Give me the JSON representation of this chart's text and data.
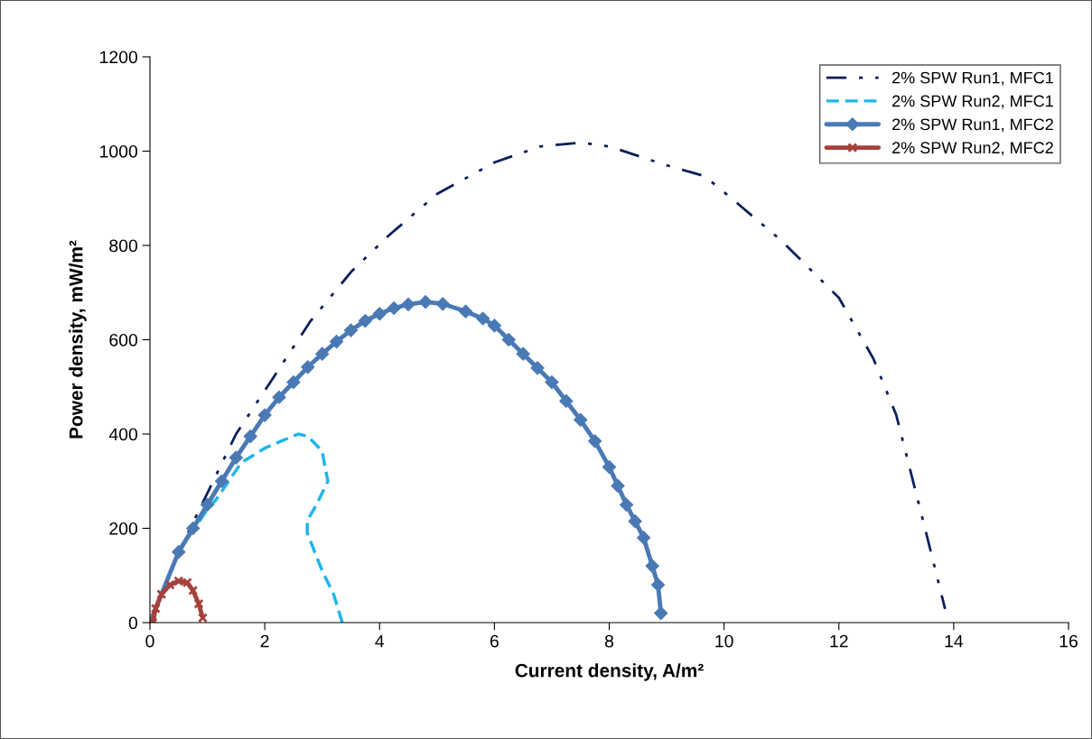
{
  "chart_data": {
    "type": "line",
    "xlabel": "Current density, A/m²",
    "ylabel": "Power density, mW/m²",
    "xlim": [
      0,
      16
    ],
    "xticks": [
      0,
      2,
      4,
      6,
      8,
      10,
      12,
      14,
      16
    ],
    "ylim": [
      0,
      1200
    ],
    "yticks": [
      0,
      200,
      400,
      600,
      800,
      1000,
      1200
    ],
    "grid": false,
    "legend": "top right",
    "series": [
      {
        "name": "2% SPW Run1, MFC1",
        "color": "#0b1f5c",
        "line_style": "dashdotdot",
        "marker": "none",
        "x": [
          0,
          0.5,
          1.05,
          1.5,
          2.0,
          2.8,
          3.52,
          4.15,
          5.0,
          6.0,
          6.8,
          7.5,
          8.0,
          9.0,
          9.66,
          10.13,
          11.0,
          12.0,
          12.6,
          13.0,
          13.5,
          13.85
        ],
        "values": [
          0,
          150,
          287,
          400,
          492,
          640,
          746,
          820,
          909,
          976,
          1010,
          1018,
          1010,
          970,
          947,
          900,
          810,
          689,
          560,
          440,
          200,
          29
        ]
      },
      {
        "name": "2% SPW Run2, MFC1",
        "color": "#1fb5ea",
        "line_style": "dashed",
        "marker": "none",
        "x": [
          0,
          0.5,
          1.0,
          1.16,
          1.59,
          2.0,
          2.58,
          2.75,
          3.0,
          3.05,
          3.1,
          2.9,
          2.74,
          2.74,
          3.0,
          3.2,
          3.35
        ],
        "values": [
          0,
          150,
          240,
          262,
          339,
          370,
          400,
          395,
          364,
          330,
          300,
          250,
          216,
          190,
          110,
          60,
          0
        ]
      },
      {
        "name": "2% SPW Run1, MFC2",
        "color": "#4a7ab5",
        "line_style": "solid",
        "marker": "diamond",
        "x": [
          0,
          0.5,
          0.75,
          1.0,
          1.25,
          1.5,
          1.75,
          2.0,
          2.25,
          2.5,
          2.75,
          3.0,
          3.25,
          3.5,
          3.75,
          4.0,
          4.25,
          4.5,
          4.8,
          5.1,
          5.5,
          5.8,
          6.0,
          6.25,
          6.5,
          6.75,
          7.0,
          7.25,
          7.5,
          7.75,
          8.0,
          8.15,
          8.3,
          8.45,
          8.6,
          8.75,
          8.85,
          8.9
        ],
        "values": [
          0,
          150,
          200,
          250,
          300,
          350,
          395,
          440,
          478,
          510,
          542,
          570,
          596,
          620,
          640,
          655,
          667,
          675,
          680,
          676,
          660,
          645,
          630,
          600,
          570,
          540,
          510,
          470,
          430,
          385,
          330,
          290,
          250,
          215,
          180,
          120,
          80,
          20
        ]
      },
      {
        "name": "2% SPW Run2, MFC2",
        "color": "#a5403b",
        "line_style": "solid",
        "marker": "cross",
        "x": [
          0.05,
          0.1,
          0.2,
          0.35,
          0.5,
          0.65,
          0.75,
          0.85,
          0.92
        ],
        "values": [
          0,
          30,
          60,
          80,
          88,
          85,
          68,
          40,
          10
        ]
      }
    ]
  }
}
